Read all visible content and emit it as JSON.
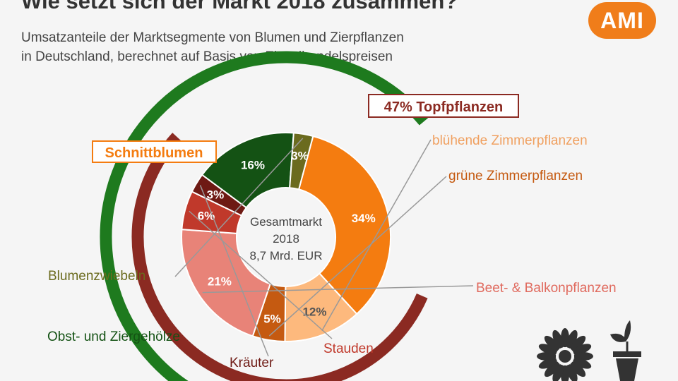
{
  "header": {
    "title": "Wie setzt sich der Markt 2018 zusammen?",
    "subtitle_line1": "Umsatzanteile der Marktsegmente von Blumen und Zierpflanzen",
    "subtitle_line2": "in Deutschland, berechnet auf Basis von Einzelhandelspreisen",
    "logo_text": "AMI"
  },
  "center_label": {
    "line1": "Gesamtmarkt",
    "line2": "2018",
    "line3": "8,7 Mrd. EUR"
  },
  "colors": {
    "schnittblumen": "#f47c10",
    "bluehende": "#fdb97d",
    "gruene": "#c55a11",
    "beet": "#e88378",
    "stauden": "#c0392b",
    "kraeuter": "#6e1a14",
    "obst": "#145214",
    "blumenzwiebeln": "#6b6b1e",
    "topf_arc": "#8b2a22",
    "green_arc": "#1e7a1e",
    "logo": "#f07d1a"
  },
  "icons": [
    "sunflower-icon",
    "potted-plant-icon"
  ],
  "chart_data": {
    "type": "pie",
    "donut": true,
    "title": "Wie setzt sich der Markt 2018 zusammen?",
    "unit": "%",
    "series": [
      {
        "name": "Schnittblumen",
        "value": 34,
        "label": "34%",
        "color": "#f47c10"
      },
      {
        "name": "blühende Zimmerpflanzen",
        "value": 12,
        "label": "12%",
        "color": "#fdb97d"
      },
      {
        "name": "grüne Zimmerpflanzen",
        "value": 5,
        "label": "5%",
        "color": "#c55a11"
      },
      {
        "name": "Beet- & Balkonpflanzen",
        "value": 21,
        "label": "21%",
        "color": "#e88378"
      },
      {
        "name": "Stauden",
        "value": 6,
        "label": "6%",
        "color": "#c0392b"
      },
      {
        "name": "Kräuter",
        "value": 3,
        "label": "3%",
        "color": "#6e1a14"
      },
      {
        "name": "Obst- und Ziergehölze",
        "value": 16,
        "label": "16%",
        "color": "#145214"
      },
      {
        "name": "Blumenzwiebeln",
        "value": 3,
        "label": "3%",
        "color": "#6b6b1e"
      }
    ],
    "groups": [
      {
        "name": "Topfpflanzen",
        "label": "47% Topfpflanzen",
        "value": 47,
        "members": [
          "blühende Zimmerpflanzen",
          "grüne Zimmerpflanzen",
          "Beet- & Balkonpflanzen",
          "Stauden",
          "Kräuter"
        ]
      }
    ]
  }
}
